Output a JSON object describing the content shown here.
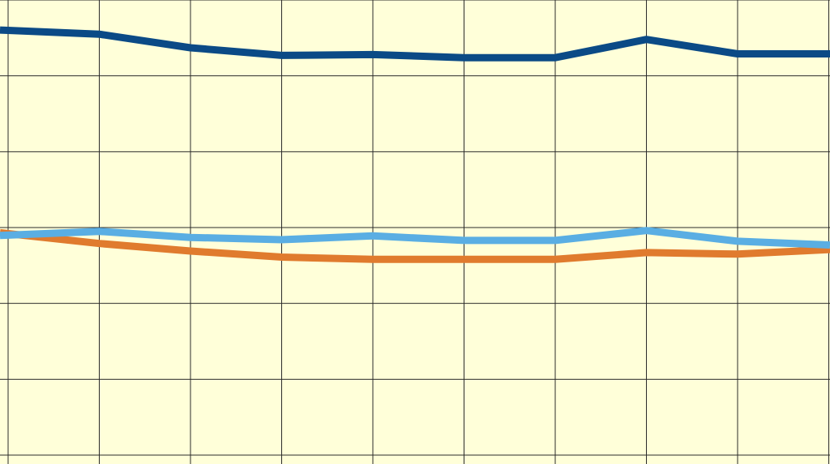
{
  "chart_data": {
    "type": "line",
    "x": [
      1,
      2,
      3,
      4,
      5,
      6,
      7,
      8,
      9,
      10
    ],
    "ylim": [
      0,
      6
    ],
    "grid": true,
    "background_color": "#ffffd9",
    "grid_color": "#2b2b2b",
    "series": [
      {
        "values": [
          5.6,
          5.55,
          5.37,
          5.27,
          5.28,
          5.24,
          5.24,
          5.48,
          5.29,
          5.29
        ],
        "color": "#0b4a86"
      },
      {
        "values": [
          2.92,
          2.79,
          2.69,
          2.61,
          2.58,
          2.58,
          2.58,
          2.67,
          2.65,
          2.71
        ],
        "color": "#e07b2e"
      },
      {
        "values": [
          2.9,
          2.95,
          2.87,
          2.84,
          2.89,
          2.83,
          2.83,
          2.96,
          2.82,
          2.77
        ],
        "color": "#5aaee3"
      }
    ]
  }
}
